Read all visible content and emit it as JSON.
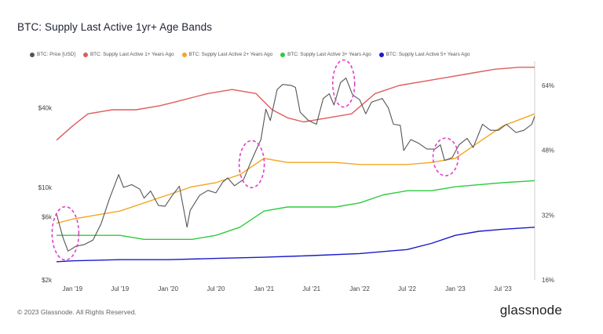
{
  "chart_data": {
    "type": "line",
    "title": "BTC: Supply Last Active 1yr+ Age Bands",
    "x_tick_labels": [
      "Jan '19",
      "Jul '19",
      "Jan '20",
      "Jul '20",
      "Jan '21",
      "Jul '21",
      "Jan '22",
      "Jul '22",
      "Jan '23",
      "Jul '23"
    ],
    "y_left_tick_labels": [
      "$40k",
      "$10k",
      "$6k",
      "$2k"
    ],
    "y_left_scale": "log",
    "y_left_range": [
      2000,
      90000
    ],
    "y_right_tick_labels": [
      "64%",
      "48%",
      "32%",
      "16%"
    ],
    "y_right_range": [
      16,
      70
    ],
    "x_range": [
      "2018-11-01",
      "2023-10-31"
    ],
    "legend_position": "top-left",
    "series": [
      {
        "name": "BTC: Price [USD]",
        "axis": "left",
        "color": "#555555",
        "x": [
          "2018-11-01",
          "2018-11-25",
          "2018-12-15",
          "2019-01-15",
          "2019-02-15",
          "2019-03-20",
          "2019-04-20",
          "2019-05-20",
          "2019-06-26",
          "2019-07-15",
          "2019-08-15",
          "2019-09-15",
          "2019-10-01",
          "2019-10-26",
          "2019-11-25",
          "2019-12-20",
          "2020-01-15",
          "2020-02-13",
          "2020-03-13",
          "2020-03-25",
          "2020-04-30",
          "2020-06-01",
          "2020-07-01",
          "2020-07-28",
          "2020-08-15",
          "2020-09-10",
          "2020-10-15",
          "2020-11-10",
          "2020-12-01",
          "2020-12-20",
          "2021-01-08",
          "2021-01-25",
          "2021-02-20",
          "2021-03-13",
          "2021-04-14",
          "2021-05-01",
          "2021-05-19",
          "2021-06-20",
          "2021-07-20",
          "2021-08-15",
          "2021-09-07",
          "2021-09-25",
          "2021-10-20",
          "2021-11-10",
          "2021-12-05",
          "2022-01-01",
          "2022-01-24",
          "2022-02-15",
          "2022-03-28",
          "2022-04-20",
          "2022-05-10",
          "2022-06-05",
          "2022-06-18",
          "2022-07-15",
          "2022-08-15",
          "2022-09-15",
          "2022-10-15",
          "2022-11-05",
          "2022-11-21",
          "2022-12-20",
          "2023-01-15",
          "2023-02-15",
          "2023-03-10",
          "2023-04-15",
          "2023-05-15",
          "2023-06-15",
          "2023-07-15",
          "2023-08-20",
          "2023-09-20",
          "2023-10-20",
          "2023-10-31"
        ],
        "values": [
          6300,
          4200,
          3300,
          3600,
          3700,
          4000,
          5300,
          8000,
          12500,
          10000,
          10500,
          9700,
          8300,
          9400,
          7300,
          7200,
          8600,
          10200,
          5000,
          6700,
          8700,
          9500,
          9100,
          11000,
          11800,
          10300,
          11500,
          15300,
          19000,
          23000,
          39000,
          32000,
          55000,
          60000,
          59000,
          57000,
          37000,
          32000,
          30000,
          47000,
          51000,
          42000,
          62000,
          67000,
          50000,
          46000,
          36000,
          44000,
          47000,
          40000,
          30000,
          29500,
          19000,
          23000,
          21500,
          19500,
          19500,
          21000,
          16000,
          16800,
          21000,
          23500,
          20000,
          30000,
          27000,
          27000,
          30000,
          26000,
          27000,
          30000,
          34500
        ]
      },
      {
        "name": "BTC: Supply Last Active 1+ Years Ago",
        "axis": "right",
        "color": "#e05c5c",
        "x": [
          "2018-11-01",
          "2019-01-01",
          "2019-03-01",
          "2019-06-01",
          "2019-09-01",
          "2019-12-01",
          "2020-02-01",
          "2020-04-01",
          "2020-06-01",
          "2020-09-01",
          "2020-12-01",
          "2021-02-01",
          "2021-04-01",
          "2021-06-01",
          "2021-09-01",
          "2021-12-01",
          "2022-03-01",
          "2022-06-01",
          "2022-09-01",
          "2022-12-01",
          "2023-03-01",
          "2023-06-01",
          "2023-09-01",
          "2023-10-31"
        ],
        "values": [
          50.5,
          54,
          57,
          58,
          58,
          59,
          60,
          61,
          62,
          63,
          62,
          58,
          56,
          55,
          56,
          57,
          62,
          64,
          65,
          66,
          67,
          68,
          68.5,
          68.5
        ]
      },
      {
        "name": "BTC: Supply Last Active 2+ Years Ago",
        "axis": "right",
        "color": "#f5a623",
        "x": [
          "2018-11-01",
          "2019-01-01",
          "2019-04-01",
          "2019-07-01",
          "2019-10-01",
          "2020-01-01",
          "2020-04-01",
          "2020-07-01",
          "2020-10-01",
          "2021-01-01",
          "2021-04-01",
          "2021-07-01",
          "2021-10-01",
          "2022-01-01",
          "2022-04-01",
          "2022-07-01",
          "2022-10-01",
          "2023-01-01",
          "2023-04-01",
          "2023-07-01",
          "2023-10-31"
        ],
        "values": [
          30,
          31,
          32,
          33,
          35,
          37,
          39,
          40,
          42,
          46,
          45,
          45,
          45,
          44.5,
          44.5,
          44.5,
          45,
          46,
          50,
          54,
          57
        ]
      },
      {
        "name": "BTC: Supply Last Active 3+ Years Ago",
        "axis": "right",
        "color": "#2ecc40",
        "x": [
          "2018-11-01",
          "2019-01-01",
          "2019-04-01",
          "2019-07-01",
          "2019-10-01",
          "2020-01-01",
          "2020-04-01",
          "2020-07-01",
          "2020-10-01",
          "2021-01-01",
          "2021-04-01",
          "2021-07-01",
          "2021-10-01",
          "2022-01-01",
          "2022-04-01",
          "2022-07-01",
          "2022-10-01",
          "2023-01-01",
          "2023-04-01",
          "2023-07-01",
          "2023-10-31"
        ],
        "values": [
          27,
          27,
          27,
          27,
          26,
          26,
          26,
          27,
          29,
          33,
          34,
          34,
          34,
          35,
          37,
          38,
          38,
          39,
          39.5,
          40,
          40.5
        ]
      },
      {
        "name": "BTC: Supply Last Active 5+ Years Ago",
        "axis": "right",
        "color": "#1a1acc",
        "x": [
          "2018-11-01",
          "2019-01-01",
          "2019-07-01",
          "2020-01-01",
          "2020-07-01",
          "2021-01-01",
          "2021-07-01",
          "2022-01-01",
          "2022-07-01",
          "2022-10-01",
          "2023-01-01",
          "2023-04-01",
          "2023-07-01",
          "2023-10-31"
        ],
        "values": [
          20.5,
          20.7,
          21,
          21,
          21.3,
          21.6,
          22,
          22.5,
          23.5,
          25,
          27,
          28,
          28.5,
          29
        ]
      }
    ],
    "annotations": [
      {
        "type": "ellipse",
        "x": "2018-12-05",
        "y_left": 4500,
        "style": "dashed",
        "color": "#e040c8"
      },
      {
        "type": "ellipse",
        "x": "2020-11-15",
        "y_left": 15000,
        "style": "dashed",
        "color": "#e040c8"
      },
      {
        "type": "ellipse",
        "x": "2021-11-01",
        "y_left": 61000,
        "style": "dashed",
        "color": "#e040c8"
      },
      {
        "type": "ellipse",
        "x": "2022-11-25",
        "y_left": 17000,
        "style": "dashed",
        "color": "#e040c8"
      }
    ]
  },
  "footer": {
    "copyright": "© 2023 Glassnode. All Rights Reserved.",
    "brand": "glassnode"
  }
}
